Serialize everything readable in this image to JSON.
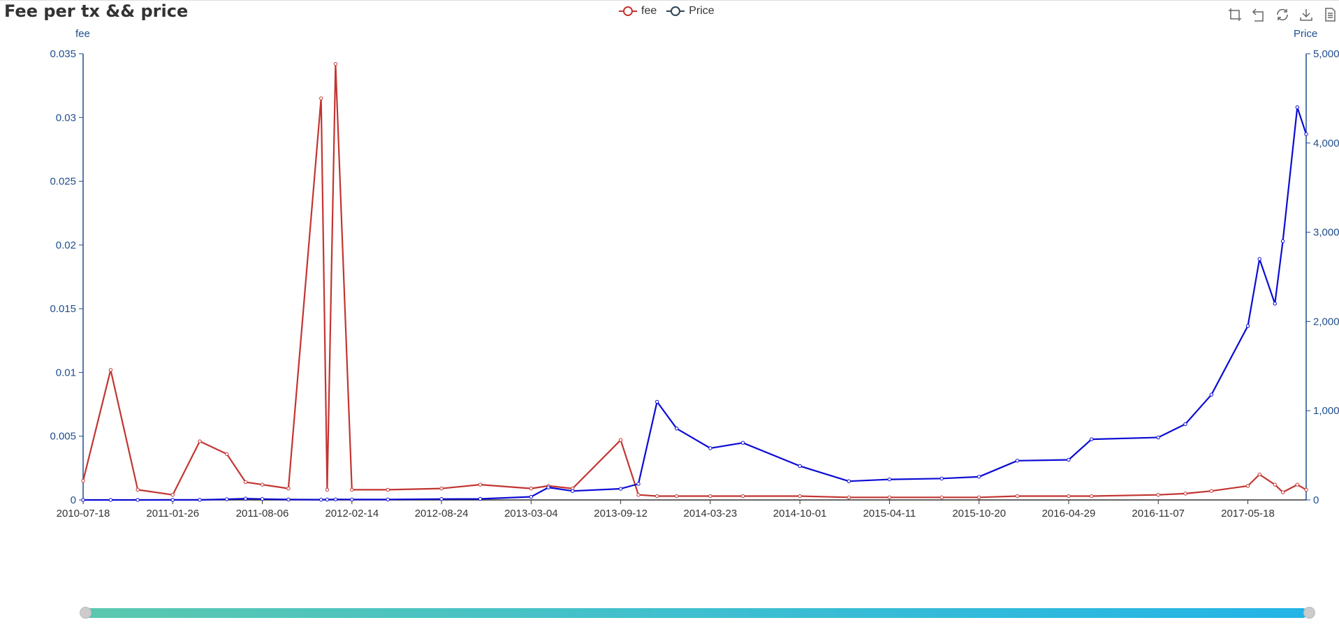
{
  "title": "Fee per tx && price",
  "legend": [
    {
      "label": "fee",
      "color": "#c23531"
    },
    {
      "label": "Price",
      "color": "#2f4554"
    }
  ],
  "toolbox": [
    "zoom-icon",
    "zoom-reset-icon",
    "restore-icon",
    "download-icon",
    "data-view-icon"
  ],
  "chart_data": {
    "type": "line",
    "title": "Fee per tx && price",
    "x": [
      "2010-07-18",
      "2010-09-15",
      "2010-11-12",
      "2011-01-26",
      "2011-03-25",
      "2011-05-22",
      "2011-07-01",
      "2011-08-06",
      "2011-10-01",
      "2011-12-10",
      "2011-12-23",
      "2012-01-10",
      "2012-02-14",
      "2012-05-01",
      "2012-08-24",
      "2012-11-15",
      "2013-03-04",
      "2013-04-10",
      "2013-06-01",
      "2013-09-12",
      "2013-10-20",
      "2013-11-29",
      "2014-01-10",
      "2014-03-23",
      "2014-06-01",
      "2014-10-01",
      "2015-01-14",
      "2015-04-11",
      "2015-08-01",
      "2015-10-20",
      "2016-01-10",
      "2016-04-29",
      "2016-06-17",
      "2016-11-07",
      "2017-01-04",
      "2017-03-01",
      "2017-05-18",
      "2017-06-12",
      "2017-07-15",
      "2017-08-01",
      "2017-09-01",
      "2017-09-20"
    ],
    "series": [
      {
        "name": "fee",
        "yAxis": "fee",
        "values": [
          0.0015,
          0.0102,
          0.0008,
          0.0004,
          0.0046,
          0.0036,
          0.0014,
          0.0012,
          0.0009,
          0.0315,
          0.0008,
          0.0342,
          0.0008,
          0.0008,
          0.0009,
          0.0012,
          0.0009,
          0.0011,
          0.0009,
          0.0047,
          0.0004,
          0.0003,
          0.0003,
          0.0003,
          0.0003,
          0.0003,
          0.0002,
          0.0002,
          0.0002,
          0.0002,
          0.0003,
          0.0003,
          0.0003,
          0.0004,
          0.0005,
          0.0007,
          0.0011,
          0.002,
          0.0012,
          0.0006,
          0.0012,
          0.0008
        ]
      },
      {
        "name": "Price",
        "yAxis": "Price",
        "values": [
          0.06,
          0.1,
          0.3,
          0.5,
          0.8,
          8,
          15,
          10,
          5,
          3,
          4,
          6,
          5,
          5,
          10,
          12,
          35,
          140,
          100,
          125,
          180,
          1100,
          800,
          580,
          640,
          380,
          210,
          230,
          240,
          260,
          440,
          450,
          680,
          700,
          850,
          1180,
          1950,
          2700,
          2200,
          2900,
          4400,
          4100
        ]
      }
    ],
    "xAxis": {
      "labels": [
        "2010-07-18",
        "2011-01-26",
        "2011-08-06",
        "2012-02-14",
        "2012-08-24",
        "2013-03-04",
        "2013-09-12",
        "2014-03-23",
        "2014-10-01",
        "2015-04-11",
        "2015-10-20",
        "2016-04-29",
        "2016-11-07",
        "2017-05-18"
      ]
    },
    "yAxes": [
      {
        "name": "fee",
        "position": "left",
        "range": [
          0,
          0.035
        ],
        "ticks": [
          "0",
          "0.005",
          "0.01",
          "0.015",
          "0.02",
          "0.025",
          "0.03",
          "0.035"
        ]
      },
      {
        "name": "Price",
        "position": "right",
        "range": [
          0,
          5000
        ],
        "ticks": [
          "0",
          "1,000",
          "2,000",
          "3,000",
          "4,000",
          "5,000"
        ]
      }
    ],
    "lineColors": {
      "fee": "#c23531",
      "Price": "#0b0bd4"
    },
    "legend_position": "top-center",
    "grid": false,
    "dataZoom": {
      "start": 0,
      "end": 100
    }
  }
}
